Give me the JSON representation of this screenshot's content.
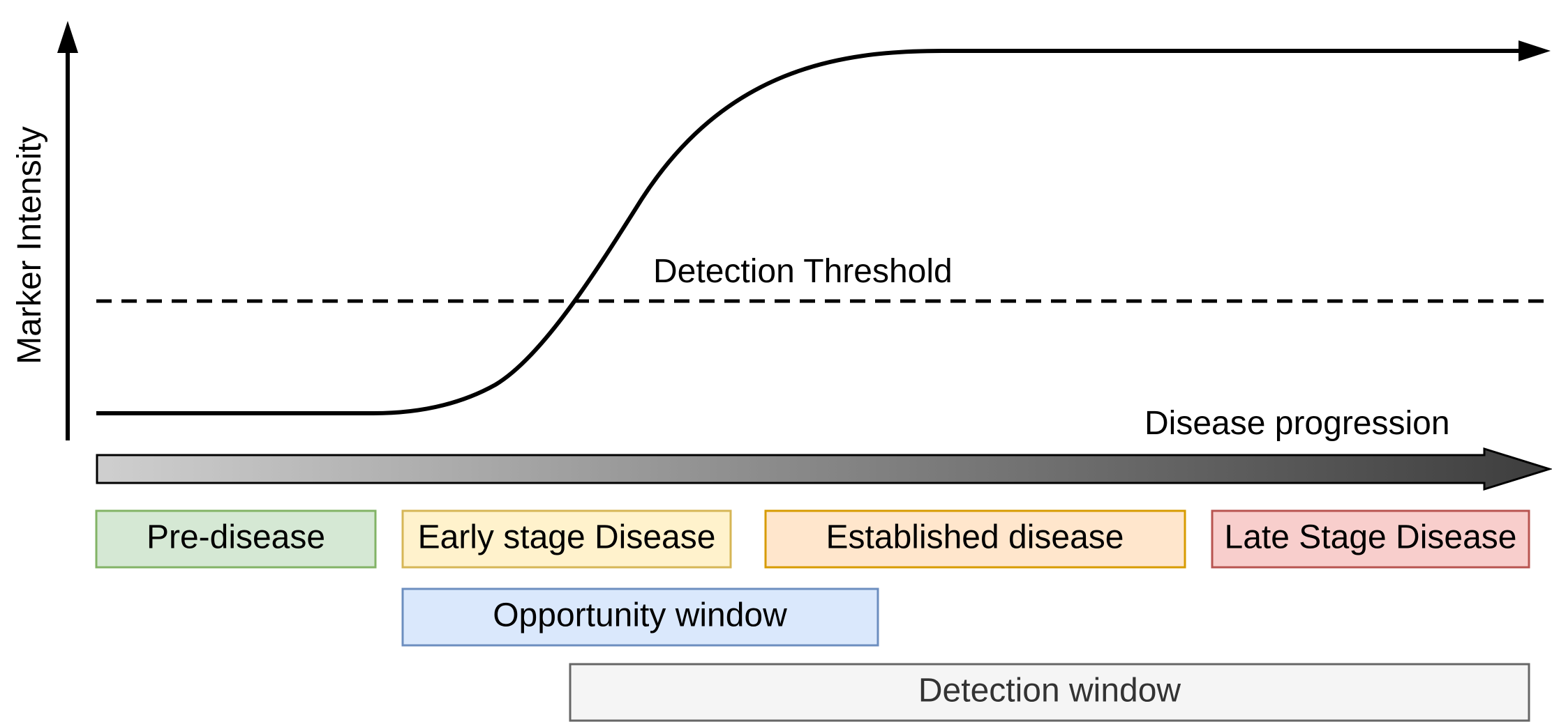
{
  "diagram": {
    "y_axis_label": "Marker Intensity",
    "threshold_label": "Detection Threshold",
    "progression_label": "Disease progression",
    "stages": [
      {
        "label": "Pre-disease",
        "fill": "#d5e8d4",
        "stroke": "#82b366"
      },
      {
        "label": "Early stage Disease",
        "fill": "#fff2cc",
        "stroke": "#d6b656"
      },
      {
        "label": "Established disease",
        "fill": "#ffe6cc",
        "stroke": "#d79b00"
      },
      {
        "label": "Late Stage Disease",
        "fill": "#f8cecc",
        "stroke": "#b85450"
      }
    ],
    "windows": [
      {
        "label": "Opportunity window",
        "fill": "#dae8fc",
        "stroke": "#6c8ebf"
      },
      {
        "label": "Detection window",
        "fill": "#f5f5f5",
        "stroke": "#666666",
        "text_color": "#333333"
      }
    ],
    "progression_gradient": {
      "start": "#cfcfcf",
      "end": "#3d3d3d"
    }
  }
}
